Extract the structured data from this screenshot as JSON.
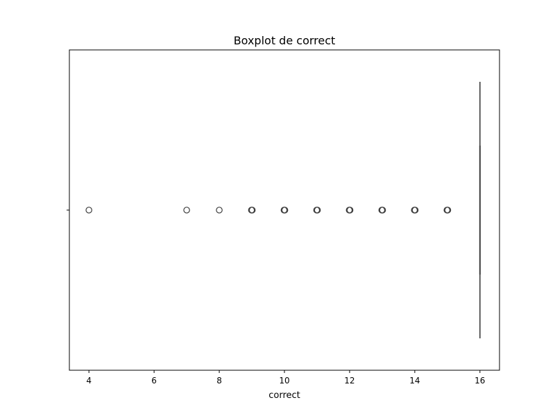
{
  "chart_data": {
    "type": "boxplot",
    "orientation": "horizontal",
    "title": "Boxplot de correct",
    "xlabel": "correct",
    "ylabel": "",
    "xlim": [
      3.4,
      16.6
    ],
    "x_ticks": [
      4,
      6,
      8,
      10,
      12,
      14,
      16
    ],
    "box": {
      "min": 16,
      "q1": 16,
      "median": 16,
      "q3": 16,
      "max": 16
    },
    "outliers": [
      4,
      7,
      8,
      9,
      10,
      11,
      12,
      13,
      14,
      15
    ],
    "grid": false,
    "legend": "none",
    "colors": {
      "box_line": "#3f3f3f",
      "outlier_edge": "#3f3f3f",
      "axis": "#000000"
    }
  }
}
